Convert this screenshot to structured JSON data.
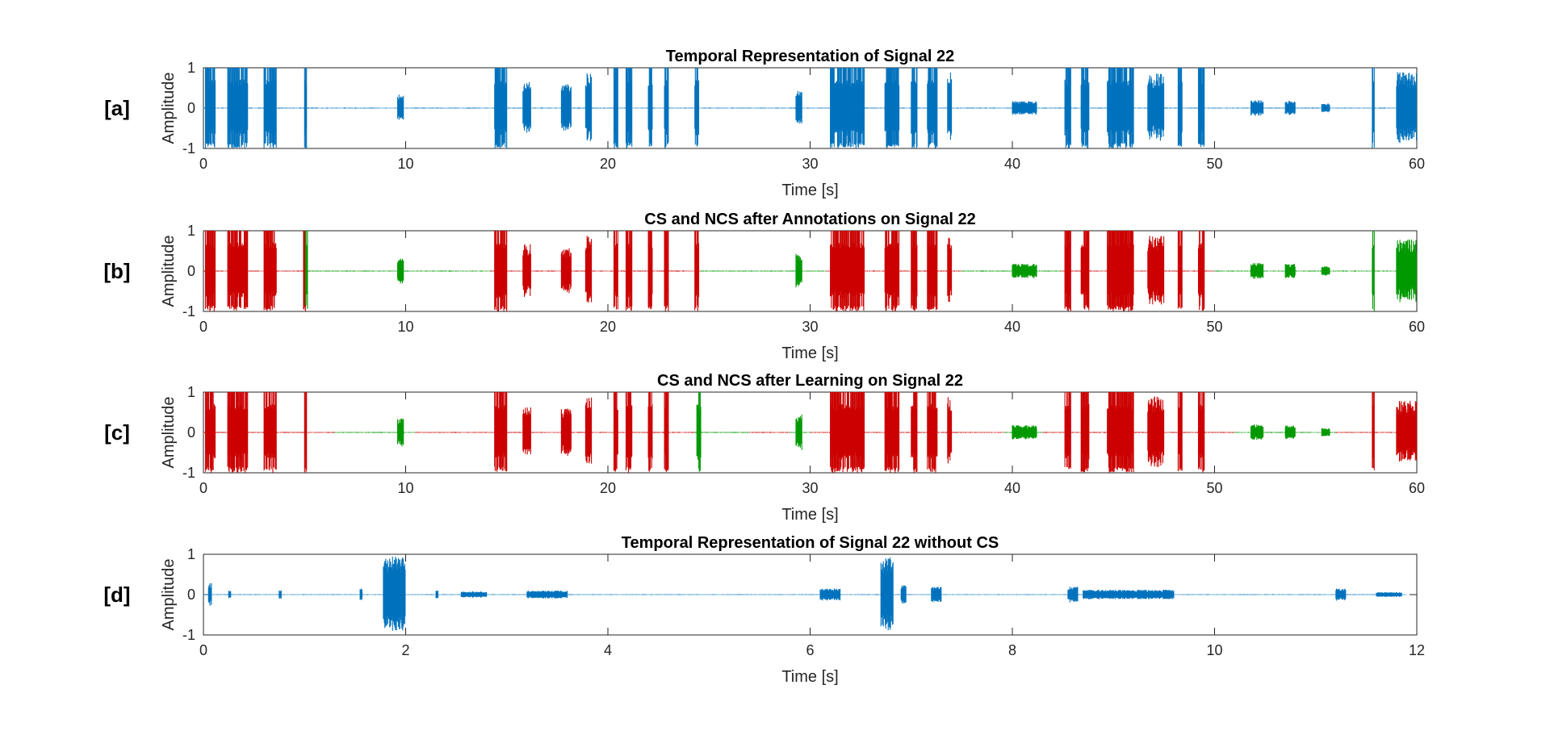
{
  "chart_data": [
    {
      "panel_tag": "[a]",
      "type": "line",
      "title": "Temporal Representation of Signal 22",
      "xlabel": "Time [s]",
      "ylabel": "Amplitude",
      "xlim": [
        0,
        60
      ],
      "ylim": [
        -1,
        1
      ],
      "xticks": [
        0,
        10,
        20,
        30,
        40,
        50,
        60
      ],
      "yticks": [
        -1,
        0,
        1
      ],
      "grid": false,
      "series_colors": [
        "#0072BD"
      ],
      "segments": [
        {
          "t0": 0.0,
          "t1": 60.0,
          "amp": 0.012,
          "c": 0
        },
        {
          "t0": 0.1,
          "t1": 0.6,
          "amp": 1.0,
          "c": 0
        },
        {
          "t0": 1.2,
          "t1": 2.2,
          "amp": 1.0,
          "c": 0
        },
        {
          "t0": 3.0,
          "t1": 3.6,
          "amp": 1.0,
          "c": 0
        },
        {
          "t0": 5.0,
          "t1": 5.1,
          "amp": 1.0,
          "c": 0
        },
        {
          "t0": 9.6,
          "t1": 9.9,
          "amp": 0.35,
          "c": 0
        },
        {
          "t0": 14.4,
          "t1": 15.0,
          "amp": 1.0,
          "c": 0
        },
        {
          "t0": 15.8,
          "t1": 16.2,
          "amp": 0.7,
          "c": 0
        },
        {
          "t0": 17.7,
          "t1": 18.2,
          "amp": 0.6,
          "c": 0
        },
        {
          "t0": 18.9,
          "t1": 19.2,
          "amp": 0.9,
          "c": 0
        },
        {
          "t0": 20.3,
          "t1": 20.5,
          "amp": 1.0,
          "c": 0
        },
        {
          "t0": 20.9,
          "t1": 21.2,
          "amp": 1.0,
          "c": 0
        },
        {
          "t0": 22.0,
          "t1": 22.2,
          "amp": 1.0,
          "c": 0
        },
        {
          "t0": 22.8,
          "t1": 23.0,
          "amp": 1.0,
          "c": 0
        },
        {
          "t0": 24.3,
          "t1": 24.5,
          "amp": 1.0,
          "c": 0
        },
        {
          "t0": 29.3,
          "t1": 29.6,
          "amp": 0.45,
          "c": 0
        },
        {
          "t0": 31.0,
          "t1": 32.7,
          "amp": 1.0,
          "c": 0
        },
        {
          "t0": 33.7,
          "t1": 34.4,
          "amp": 1.0,
          "c": 0
        },
        {
          "t0": 35.0,
          "t1": 35.3,
          "amp": 1.0,
          "c": 0
        },
        {
          "t0": 35.8,
          "t1": 36.3,
          "amp": 1.0,
          "c": 0
        },
        {
          "t0": 36.8,
          "t1": 37.0,
          "amp": 0.9,
          "c": 0
        },
        {
          "t0": 40.0,
          "t1": 41.2,
          "amp": 0.18,
          "c": 0
        },
        {
          "t0": 42.6,
          "t1": 42.9,
          "amp": 1.0,
          "c": 0
        },
        {
          "t0": 43.4,
          "t1": 43.8,
          "amp": 1.0,
          "c": 0
        },
        {
          "t0": 44.7,
          "t1": 46.0,
          "amp": 1.0,
          "c": 0
        },
        {
          "t0": 46.7,
          "t1": 47.5,
          "amp": 0.9,
          "c": 0
        },
        {
          "t0": 48.2,
          "t1": 48.4,
          "amp": 1.0,
          "c": 0
        },
        {
          "t0": 49.2,
          "t1": 49.5,
          "amp": 1.0,
          "c": 0
        },
        {
          "t0": 51.8,
          "t1": 52.4,
          "amp": 0.2,
          "c": 0
        },
        {
          "t0": 53.5,
          "t1": 54.0,
          "amp": 0.18,
          "c": 0
        },
        {
          "t0": 55.3,
          "t1": 55.7,
          "amp": 0.12,
          "c": 0
        },
        {
          "t0": 57.8,
          "t1": 57.9,
          "amp": 1.0,
          "c": 0
        },
        {
          "t0": 59.0,
          "t1": 60.0,
          "amp": 0.9,
          "c": 0
        }
      ]
    },
    {
      "panel_tag": "[b]",
      "type": "line",
      "title": "CS and NCS after Annotations on Signal 22",
      "xlabel": "Time [s]",
      "ylabel": "Amplitude",
      "xlim": [
        0,
        60
      ],
      "ylim": [
        -1,
        1
      ],
      "xticks": [
        0,
        10,
        20,
        30,
        40,
        50,
        60
      ],
      "yticks": [
        -1,
        0,
        1
      ],
      "grid": false,
      "series_colors": [
        "#CC0000",
        "#009900"
      ],
      "segments": [
        {
          "t0": 0.0,
          "t1": 5.2,
          "amp": 0.012,
          "c": 0
        },
        {
          "t0": 5.2,
          "t1": 14.2,
          "amp": 0.012,
          "c": 1
        },
        {
          "t0": 14.2,
          "t1": 24.6,
          "amp": 0.012,
          "c": 0
        },
        {
          "t0": 24.6,
          "t1": 30.8,
          "amp": 0.012,
          "c": 1
        },
        {
          "t0": 30.8,
          "t1": 37.5,
          "amp": 0.012,
          "c": 0
        },
        {
          "t0": 37.5,
          "t1": 42.4,
          "amp": 0.012,
          "c": 1
        },
        {
          "t0": 42.4,
          "t1": 50.0,
          "amp": 0.012,
          "c": 0
        },
        {
          "t0": 50.0,
          "t1": 60.0,
          "amp": 0.012,
          "c": 1
        },
        {
          "t0": 0.1,
          "t1": 0.6,
          "amp": 1.0,
          "c": 0
        },
        {
          "t0": 1.2,
          "t1": 2.2,
          "amp": 1.0,
          "c": 0
        },
        {
          "t0": 3.0,
          "t1": 3.6,
          "amp": 1.0,
          "c": 0
        },
        {
          "t0": 4.95,
          "t1": 5.05,
          "amp": 1.0,
          "c": 0
        },
        {
          "t0": 5.05,
          "t1": 5.15,
          "amp": 1.0,
          "c": 1
        },
        {
          "t0": 9.6,
          "t1": 9.9,
          "amp": 0.35,
          "c": 1
        },
        {
          "t0": 14.4,
          "t1": 15.0,
          "amp": 1.0,
          "c": 0
        },
        {
          "t0": 15.8,
          "t1": 16.2,
          "amp": 0.7,
          "c": 0
        },
        {
          "t0": 17.7,
          "t1": 18.2,
          "amp": 0.6,
          "c": 0
        },
        {
          "t0": 18.9,
          "t1": 19.2,
          "amp": 0.9,
          "c": 0
        },
        {
          "t0": 20.3,
          "t1": 20.5,
          "amp": 1.0,
          "c": 0
        },
        {
          "t0": 20.9,
          "t1": 21.2,
          "amp": 1.0,
          "c": 0
        },
        {
          "t0": 22.0,
          "t1": 22.2,
          "amp": 1.0,
          "c": 0
        },
        {
          "t0": 22.8,
          "t1": 23.0,
          "amp": 1.0,
          "c": 0
        },
        {
          "t0": 24.3,
          "t1": 24.5,
          "amp": 1.0,
          "c": 0
        },
        {
          "t0": 29.3,
          "t1": 29.6,
          "amp": 0.45,
          "c": 1
        },
        {
          "t0": 31.0,
          "t1": 32.7,
          "amp": 1.0,
          "c": 0
        },
        {
          "t0": 33.7,
          "t1": 34.4,
          "amp": 1.0,
          "c": 0
        },
        {
          "t0": 35.0,
          "t1": 35.3,
          "amp": 1.0,
          "c": 0
        },
        {
          "t0": 35.8,
          "t1": 36.3,
          "amp": 1.0,
          "c": 0
        },
        {
          "t0": 36.8,
          "t1": 37.0,
          "amp": 0.9,
          "c": 0
        },
        {
          "t0": 40.0,
          "t1": 41.2,
          "amp": 0.18,
          "c": 1
        },
        {
          "t0": 42.6,
          "t1": 42.9,
          "amp": 1.0,
          "c": 0
        },
        {
          "t0": 43.4,
          "t1": 43.8,
          "amp": 1.0,
          "c": 0
        },
        {
          "t0": 44.7,
          "t1": 46.0,
          "amp": 1.0,
          "c": 0
        },
        {
          "t0": 46.7,
          "t1": 47.5,
          "amp": 0.9,
          "c": 0
        },
        {
          "t0": 48.2,
          "t1": 48.4,
          "amp": 1.0,
          "c": 0
        },
        {
          "t0": 49.2,
          "t1": 49.5,
          "amp": 1.0,
          "c": 0
        },
        {
          "t0": 51.8,
          "t1": 52.4,
          "amp": 0.2,
          "c": 1
        },
        {
          "t0": 53.5,
          "t1": 54.0,
          "amp": 0.18,
          "c": 1
        },
        {
          "t0": 55.3,
          "t1": 55.7,
          "amp": 0.12,
          "c": 1
        },
        {
          "t0": 57.8,
          "t1": 57.9,
          "amp": 1.0,
          "c": 1
        },
        {
          "t0": 59.0,
          "t1": 60.0,
          "amp": 0.8,
          "c": 1
        }
      ]
    },
    {
      "panel_tag": "[c]",
      "type": "line",
      "title": "CS and NCS after Learning on Signal 22",
      "xlabel": "Time [s]",
      "ylabel": "Amplitude",
      "xlim": [
        0,
        60
      ],
      "ylim": [
        -1,
        1
      ],
      "xticks": [
        0,
        10,
        20,
        30,
        40,
        50,
        60
      ],
      "yticks": [
        -1,
        0,
        1
      ],
      "grid": false,
      "series_colors": [
        "#CC0000",
        "#009900"
      ],
      "segments": [
        {
          "t0": 0.0,
          "t1": 6.5,
          "amp": 0.012,
          "c": 0
        },
        {
          "t0": 6.5,
          "t1": 10.5,
          "amp": 0.012,
          "c": 1
        },
        {
          "t0": 10.5,
          "t1": 24.3,
          "amp": 0.012,
          "c": 0
        },
        {
          "t0": 24.3,
          "t1": 27.0,
          "amp": 0.012,
          "c": 1
        },
        {
          "t0": 27.0,
          "t1": 29.0,
          "amp": 0.012,
          "c": 0
        },
        {
          "t0": 29.0,
          "t1": 30.0,
          "amp": 0.012,
          "c": 1
        },
        {
          "t0": 30.0,
          "t1": 39.6,
          "amp": 0.012,
          "c": 0
        },
        {
          "t0": 39.6,
          "t1": 41.5,
          "amp": 0.012,
          "c": 1
        },
        {
          "t0": 41.5,
          "t1": 51.0,
          "amp": 0.012,
          "c": 0
        },
        {
          "t0": 51.0,
          "t1": 56.0,
          "amp": 0.012,
          "c": 1
        },
        {
          "t0": 56.0,
          "t1": 60.0,
          "amp": 0.012,
          "c": 0
        },
        {
          "t0": 0.1,
          "t1": 0.6,
          "amp": 1.0,
          "c": 0
        },
        {
          "t0": 1.2,
          "t1": 2.2,
          "amp": 1.0,
          "c": 0
        },
        {
          "t0": 3.0,
          "t1": 3.6,
          "amp": 1.0,
          "c": 0
        },
        {
          "t0": 5.0,
          "t1": 5.1,
          "amp": 1.0,
          "c": 0
        },
        {
          "t0": 9.6,
          "t1": 9.9,
          "amp": 0.35,
          "c": 1
        },
        {
          "t0": 14.4,
          "t1": 15.0,
          "amp": 1.0,
          "c": 0
        },
        {
          "t0": 15.8,
          "t1": 16.2,
          "amp": 0.7,
          "c": 0
        },
        {
          "t0": 17.7,
          "t1": 18.2,
          "amp": 0.6,
          "c": 0
        },
        {
          "t0": 18.9,
          "t1": 19.2,
          "amp": 0.9,
          "c": 0
        },
        {
          "t0": 20.3,
          "t1": 20.5,
          "amp": 1.0,
          "c": 0
        },
        {
          "t0": 20.9,
          "t1": 21.2,
          "amp": 1.0,
          "c": 0
        },
        {
          "t0": 22.0,
          "t1": 22.2,
          "amp": 1.0,
          "c": 0
        },
        {
          "t0": 22.8,
          "t1": 23.0,
          "amp": 1.0,
          "c": 0
        },
        {
          "t0": 24.4,
          "t1": 24.6,
          "amp": 1.0,
          "c": 1
        },
        {
          "t0": 29.3,
          "t1": 29.6,
          "amp": 0.45,
          "c": 1
        },
        {
          "t0": 31.0,
          "t1": 32.7,
          "amp": 1.0,
          "c": 0
        },
        {
          "t0": 33.7,
          "t1": 34.4,
          "amp": 1.0,
          "c": 0
        },
        {
          "t0": 35.0,
          "t1": 35.3,
          "amp": 1.0,
          "c": 0
        },
        {
          "t0": 35.8,
          "t1": 36.3,
          "amp": 1.0,
          "c": 0
        },
        {
          "t0": 36.8,
          "t1": 37.0,
          "amp": 0.9,
          "c": 0
        },
        {
          "t0": 40.0,
          "t1": 41.2,
          "amp": 0.18,
          "c": 1
        },
        {
          "t0": 42.6,
          "t1": 42.9,
          "amp": 1.0,
          "c": 0
        },
        {
          "t0": 43.4,
          "t1": 43.8,
          "amp": 1.0,
          "c": 0
        },
        {
          "t0": 44.7,
          "t1": 46.0,
          "amp": 1.0,
          "c": 0
        },
        {
          "t0": 46.7,
          "t1": 47.5,
          "amp": 0.9,
          "c": 0
        },
        {
          "t0": 48.2,
          "t1": 48.4,
          "amp": 1.0,
          "c": 0
        },
        {
          "t0": 49.2,
          "t1": 49.5,
          "amp": 1.0,
          "c": 0
        },
        {
          "t0": 51.8,
          "t1": 52.4,
          "amp": 0.2,
          "c": 1
        },
        {
          "t0": 53.5,
          "t1": 54.0,
          "amp": 0.18,
          "c": 1
        },
        {
          "t0": 55.3,
          "t1": 55.7,
          "amp": 0.12,
          "c": 1
        },
        {
          "t0": 57.8,
          "t1": 57.9,
          "amp": 1.0,
          "c": 0
        },
        {
          "t0": 59.0,
          "t1": 60.0,
          "amp": 0.8,
          "c": 0
        }
      ]
    },
    {
      "panel_tag": "[d]",
      "type": "line",
      "title": "Temporal Representation of Signal 22 without CS",
      "xlabel": "Time [s]",
      "ylabel": "Amplitude",
      "xlim": [
        0,
        12
      ],
      "ylim": [
        -1,
        1
      ],
      "xticks": [
        0,
        2,
        4,
        6,
        8,
        10,
        12
      ],
      "yticks": [
        -1,
        0,
        1
      ],
      "grid": false,
      "series_colors": [
        "#0072BD"
      ],
      "segments": [
        {
          "t0": 0.0,
          "t1": 11.9,
          "amp": 0.01,
          "c": 0
        },
        {
          "t0": 0.05,
          "t1": 0.08,
          "amp": 0.3,
          "c": 0
        },
        {
          "t0": 0.25,
          "t1": 0.27,
          "amp": 0.1,
          "c": 0
        },
        {
          "t0": 0.75,
          "t1": 0.77,
          "amp": 0.12,
          "c": 0
        },
        {
          "t0": 1.55,
          "t1": 1.57,
          "amp": 0.15,
          "c": 0
        },
        {
          "t0": 1.78,
          "t1": 2.0,
          "amp": 0.95,
          "c": 0
        },
        {
          "t0": 2.3,
          "t1": 2.32,
          "amp": 0.1,
          "c": 0
        },
        {
          "t0": 2.55,
          "t1": 2.8,
          "amp": 0.08,
          "c": 0
        },
        {
          "t0": 3.2,
          "t1": 3.6,
          "amp": 0.1,
          "c": 0
        },
        {
          "t0": 6.1,
          "t1": 6.3,
          "amp": 0.15,
          "c": 0
        },
        {
          "t0": 6.7,
          "t1": 6.82,
          "amp": 0.95,
          "c": 0
        },
        {
          "t0": 6.9,
          "t1": 6.95,
          "amp": 0.25,
          "c": 0
        },
        {
          "t0": 7.2,
          "t1": 7.3,
          "amp": 0.2,
          "c": 0
        },
        {
          "t0": 8.55,
          "t1": 8.65,
          "amp": 0.2,
          "c": 0
        },
        {
          "t0": 8.7,
          "t1": 9.6,
          "amp": 0.12,
          "c": 0
        },
        {
          "t0": 11.2,
          "t1": 11.3,
          "amp": 0.15,
          "c": 0
        },
        {
          "t0": 11.6,
          "t1": 11.85,
          "amp": 0.06,
          "c": 0
        }
      ]
    }
  ]
}
